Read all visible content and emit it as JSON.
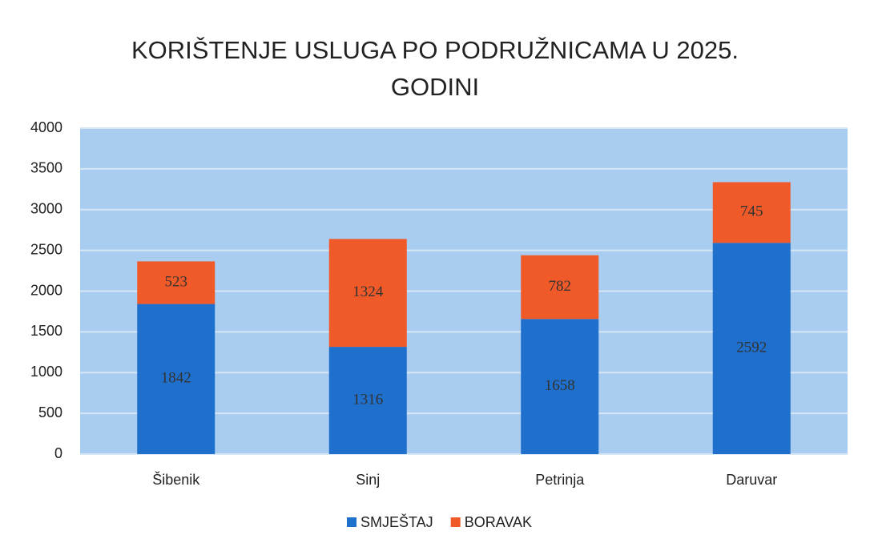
{
  "chart_data": {
    "type": "stacked_bar",
    "title": "KORIŠTENJE USLUGA PO PODRUŽNICAMA U 2025. GODINI",
    "categories": [
      "Šibenik",
      "Sinj",
      "Petrinja",
      "Daruvar"
    ],
    "series": [
      {
        "name": "SMJEŠTAJ",
        "color": "#1f6fcc",
        "values": [
          1842,
          1316,
          1658,
          2592
        ]
      },
      {
        "name": "BORAVAK",
        "color": "#f05a28",
        "values": [
          523,
          1324,
          782,
          745
        ]
      }
    ],
    "ylim": [
      0,
      4000
    ],
    "yticks": [
      0,
      500,
      1000,
      1500,
      2000,
      2500,
      3000,
      3500,
      4000
    ],
    "grid": true,
    "legend": "bottom"
  }
}
